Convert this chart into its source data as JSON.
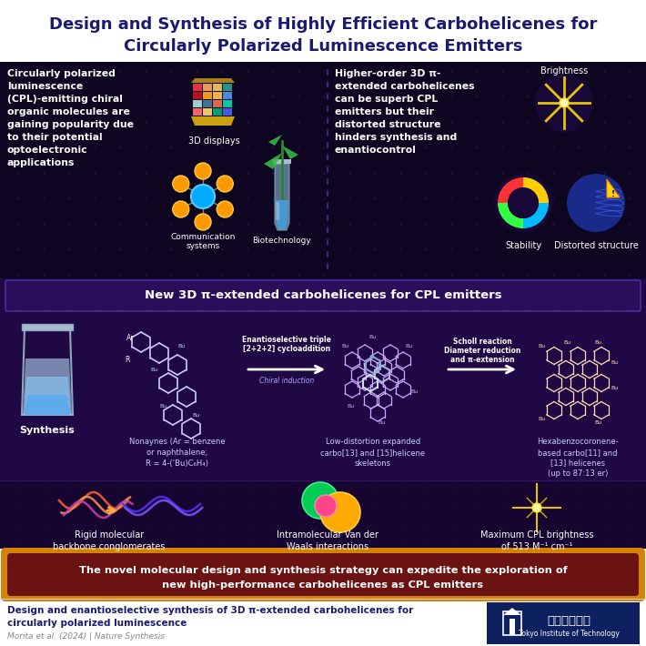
{
  "title_line1": "Design and Synthesis of Highly Efficient Carbohelicenes for",
  "title_line2": "Circularly Polarized Luminescence Emitters",
  "title_color": "#1a1a6e",
  "top_panel_bg": "#0e0620",
  "left_text": "Circularly polarized\nluminescence\n(CPL)-emitting chiral\norganic molecules are\ngaining popularity due\nto their potential\noptoelectronic\napplications",
  "right_text": "Higher-order 3D π-\nextended carbohelicenes\ncan be superb CPL\nemitters but their\ndistorted structure\nhinders synthesis and\nenantiocontrol",
  "middle_title": "New 3D π-extended carbohelicenes for CPL emitters",
  "arrow_label1a": "Enantioselective triple",
  "arrow_label1b": "[2+2+2] cycloaddition",
  "arrow_label1c": "Chiral induction",
  "arrow_label2a": "Scholl reaction",
  "arrow_label2b": "Diameter reduction",
  "arrow_label2c": "and π-extension",
  "mol1_label": "Nonaynes (Ar = benzene\nor naphthalene;\nR = 4-(’Bu)C₆H₄)",
  "mol2_label": "Low-distortion expanded\ncarbo[13] and [15]helicene\nskeletons",
  "mol3_label": "Hexabenzocoronene-\nbased carbo[11] and\n[13] helicenes\n(up to 87:13 er)",
  "bottom_text1": "Rigid molecular\nbackbone conglomerates",
  "bottom_text2": "Intramolecular Van der\nWaals interactions",
  "bottom_text3": "Maximum CPL brightness\nof 513 M⁻¹ cm⁻¹",
  "conclusion_text_a": "The novel molecular design and synthesis strategy can expedite the exploration of",
  "conclusion_text_b": "new high-performance carbohelicenes as CPL emitters",
  "footer_text1": "Design and enantioselective synthesis of 3D π-extended carbohelicenes for",
  "footer_text2": "circularly polarized luminescence",
  "footer_text3": "Morita et al. (2024) | Nature Synthesis",
  "synth_label": "Synthesis",
  "brightness_label": "Brightness",
  "stability_label": "Stability",
  "distorted_label": "Distorted structure",
  "comm_label": "Communication\nsystems",
  "bio_label": "Biotechnology",
  "display_label": "3D displays"
}
